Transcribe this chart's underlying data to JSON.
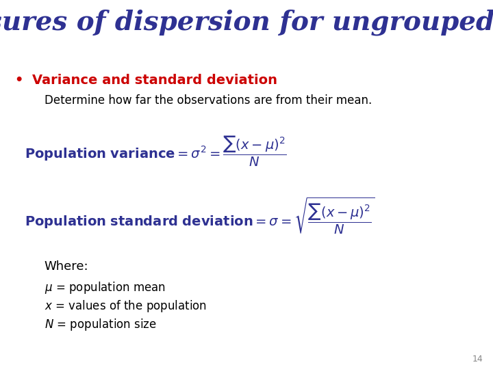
{
  "title": "Measures of dispersion for ungrouped data",
  "title_color": "#2E3192",
  "title_fontsize": 28,
  "background_color": "#ffffff",
  "bullet_text": "Variance and standard deviation",
  "bullet_color": "#cc0000",
  "bullet_fontsize": 14,
  "desc_text": "Determine how far the observations are from their mean.",
  "desc_color": "#000000",
  "desc_fontsize": 12,
  "formula1_color": "#2E3192",
  "formula1_fontsize": 14,
  "formula2_color": "#2E3192",
  "formula2_fontsize": 14,
  "where_text": "Where:",
  "where_color": "#000000",
  "where_fontsize": 13,
  "lines_color": "#000000",
  "lines_fontsize": 12,
  "page_num": "14",
  "page_color": "#888888",
  "page_fontsize": 9
}
